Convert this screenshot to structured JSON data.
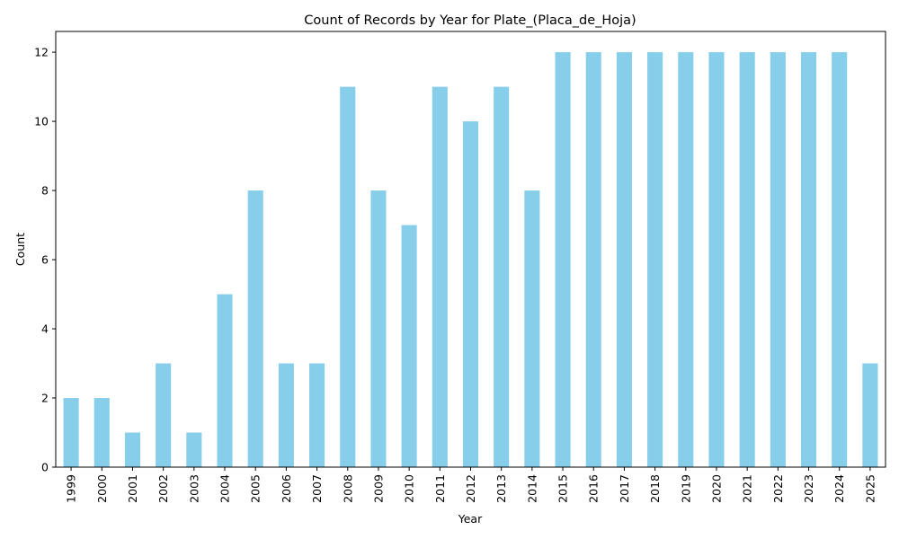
{
  "chart_data": {
    "type": "bar",
    "title": "Count of Records by Year for Plate_(Placa_de_Hoja)",
    "xlabel": "Year",
    "ylabel": "Count",
    "categories": [
      "1999",
      "2000",
      "2001",
      "2002",
      "2003",
      "2004",
      "2005",
      "2006",
      "2007",
      "2008",
      "2009",
      "2010",
      "2011",
      "2012",
      "2013",
      "2014",
      "2015",
      "2016",
      "2017",
      "2018",
      "2019",
      "2020",
      "2021",
      "2022",
      "2023",
      "2024",
      "2025"
    ],
    "values": [
      2,
      2,
      1,
      3,
      1,
      5,
      8,
      3,
      3,
      11,
      8,
      7,
      11,
      10,
      11,
      8,
      12,
      12,
      12,
      12,
      12,
      12,
      12,
      12,
      12,
      12,
      3
    ],
    "ylim": [
      0,
      12.6
    ],
    "yticks": [
      0,
      2,
      4,
      6,
      8,
      10,
      12
    ],
    "bar_color": "#87ceeb",
    "grid": false,
    "legend": "none"
  }
}
